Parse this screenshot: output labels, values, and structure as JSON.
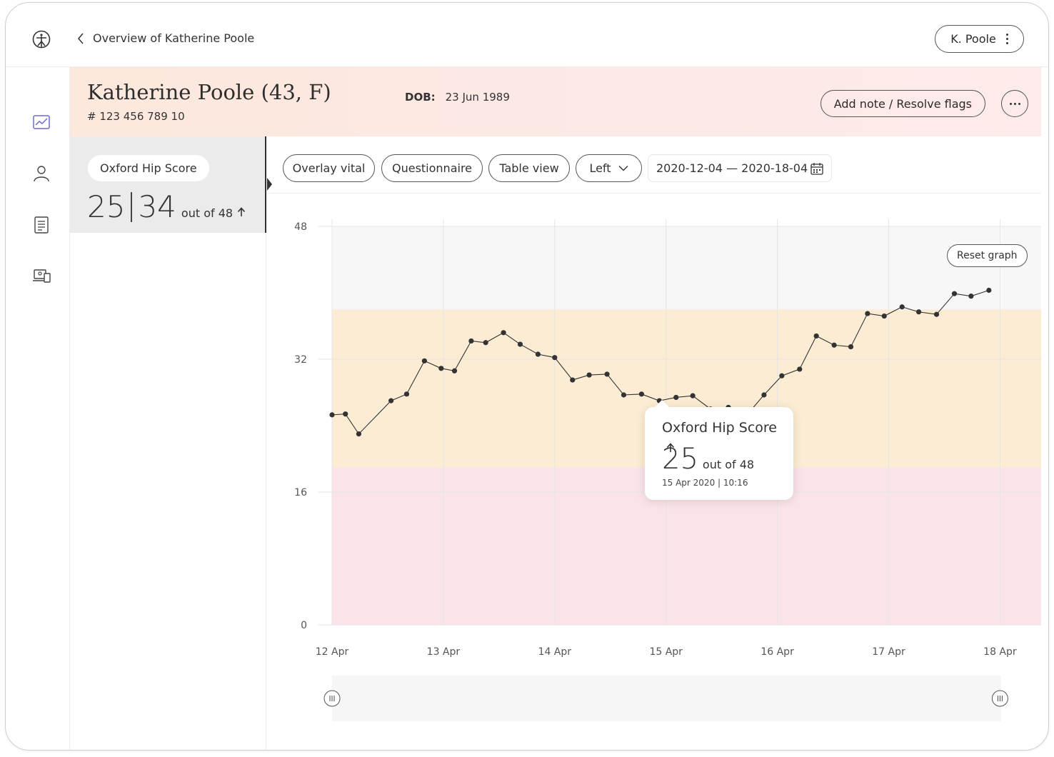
{
  "topbar": {
    "back_label": "Overview of Katherine Poole",
    "user_label": "K. Poole"
  },
  "patient": {
    "name": "Katherine Poole (43, F)",
    "id": "# 123 456 789 10",
    "dob_label": "DOB:",
    "dob": "23 Jun 1989",
    "add_note_label": "Add note / Resolve flags"
  },
  "score_card": {
    "title": "Oxford Hip Score",
    "value_left": "25",
    "value_right": "34",
    "out_of": "out of 48"
  },
  "toolbar": {
    "overlay": "Overlay vital",
    "questionnaire": "Questionnaire",
    "table_view": "Table view",
    "side": "Left",
    "date_range": "2020-12-04 — 2020-18-04"
  },
  "chart": {
    "reset_label": "Reset graph",
    "tooltip": {
      "title": "Oxford Hip Score",
      "value": "25",
      "out_of": "out of 48",
      "date": "15 Apr 2020 | 10:16"
    }
  },
  "chart_data": {
    "type": "line",
    "title": "Oxford Hip Score",
    "xlabel": "",
    "ylabel": "",
    "ylim": [
      0,
      48
    ],
    "yticks": [
      "0",
      "16",
      "32",
      "48"
    ],
    "xticks": [
      "12 Apr",
      "13 Apr",
      "14 Apr",
      "15 Apr",
      "16 Apr",
      "17 Apr",
      "18 Apr"
    ],
    "xlim": [
      0,
      6.4
    ],
    "bands": [
      {
        "from": 0,
        "to": 19,
        "color": "#fbe4e8"
      },
      {
        "from": 19,
        "to": 38,
        "color": "#fcecd3"
      },
      {
        "from": 38,
        "to": 48,
        "color": "#f7f7f7"
      }
    ],
    "grid": true,
    "series": [
      {
        "values": [
          [
            0.0,
            25.3
          ],
          [
            0.12,
            25.4
          ],
          [
            0.24,
            23.0
          ],
          [
            0.53,
            27.0
          ],
          [
            0.67,
            27.8
          ],
          [
            0.83,
            31.8
          ],
          [
            0.98,
            30.9
          ],
          [
            1.1,
            30.6
          ],
          [
            1.25,
            34.2
          ],
          [
            1.38,
            34.0
          ],
          [
            1.54,
            35.2
          ],
          [
            1.69,
            33.8
          ],
          [
            1.85,
            32.6
          ],
          [
            2.0,
            32.2
          ],
          [
            2.16,
            29.5
          ],
          [
            2.31,
            30.1
          ],
          [
            2.47,
            30.2
          ],
          [
            2.62,
            27.7
          ],
          [
            2.78,
            27.8
          ],
          [
            2.94,
            27.0
          ],
          [
            3.09,
            27.4
          ],
          [
            3.24,
            27.6
          ],
          [
            3.4,
            26.0
          ],
          [
            3.56,
            26.2
          ],
          [
            3.72,
            25.2
          ],
          [
            3.88,
            27.7
          ],
          [
            4.04,
            30.0
          ],
          [
            4.2,
            30.8
          ],
          [
            4.35,
            34.8
          ],
          [
            4.51,
            33.7
          ],
          [
            4.66,
            33.5
          ],
          [
            4.81,
            37.5
          ],
          [
            4.96,
            37.2
          ],
          [
            5.12,
            38.3
          ],
          [
            5.27,
            37.7
          ],
          [
            5.43,
            37.4
          ],
          [
            5.59,
            39.9
          ],
          [
            5.74,
            39.6
          ],
          [
            5.9,
            40.3
          ]
        ]
      }
    ],
    "line_color": "#333333"
  }
}
